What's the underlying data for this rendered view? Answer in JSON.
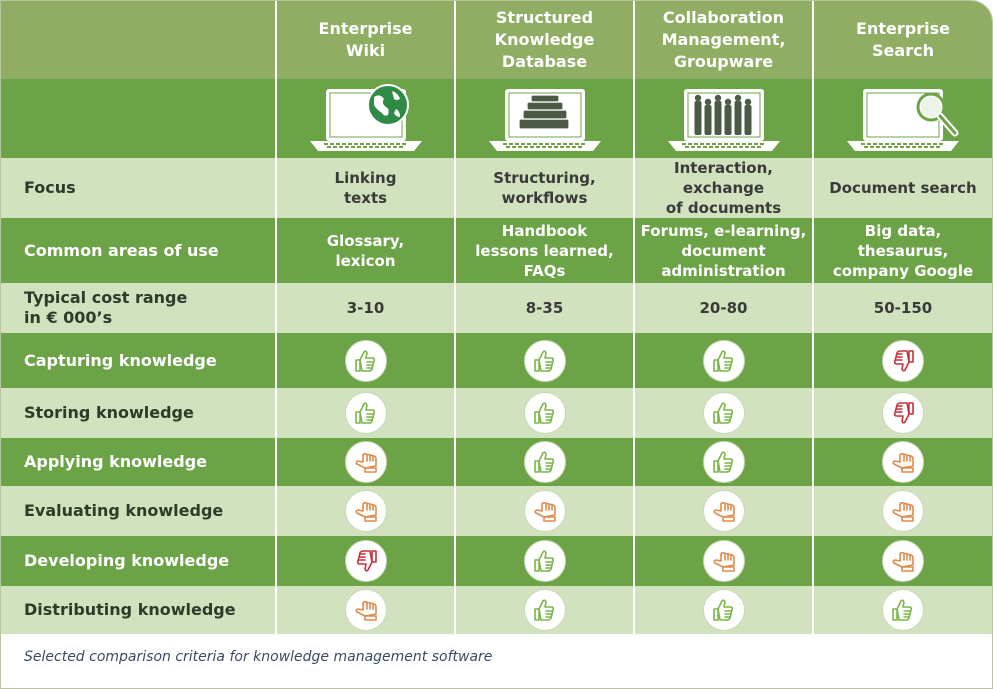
{
  "columns": [
    {
      "title": "Enterprise Wiki",
      "lines": [
        "Enterprise",
        "Wiki"
      ],
      "icon": "globe-laptop-icon"
    },
    {
      "title": "Structured Knowledge Database",
      "lines": [
        "Structured",
        "Knowledge",
        "Database"
      ],
      "icon": "books-laptop-icon"
    },
    {
      "title": "Collaboration Management, Groupware",
      "lines": [
        "Collaboration",
        "Management,",
        "Groupware"
      ],
      "icon": "people-laptop-icon"
    },
    {
      "title": "Enterprise Search",
      "lines": [
        "Enterprise",
        "Search"
      ],
      "icon": "magnifier-laptop-icon"
    }
  ],
  "rows": [
    {
      "label": "Focus",
      "cells": [
        "Linking\ntexts",
        "Structuring,\nworkflows",
        "Interaction, exchange\nof documents",
        "Document search"
      ]
    },
    {
      "label": "Common areas of use",
      "cells": [
        "Glossary,\nlexicon",
        "Handbook\nlessons learned,\nFAQs",
        "Forums, e-learning,\ndocument\nadministration",
        "Big data,\nthesaurus,\ncompany Google"
      ]
    },
    {
      "label": "Typical cost range\nin € 000’s",
      "cells": [
        "3-10",
        "8-35",
        "20-80",
        "50-150"
      ]
    }
  ],
  "ratings": [
    {
      "label": "Capturing knowledge",
      "values": [
        "thumbs-up",
        "thumbs-up",
        "thumbs-up",
        "thumbs-down"
      ]
    },
    {
      "label": "Storing knowledge",
      "values": [
        "thumbs-up",
        "thumbs-up",
        "thumbs-up",
        "thumbs-down"
      ]
    },
    {
      "label": "Applying knowledge",
      "values": [
        "thumbs-neutral",
        "thumbs-up",
        "thumbs-up",
        "thumbs-neutral"
      ]
    },
    {
      "label": "Evaluating knowledge",
      "values": [
        "thumbs-neutral",
        "thumbs-neutral",
        "thumbs-neutral",
        "thumbs-neutral"
      ]
    },
    {
      "label": "Developing knowledge",
      "values": [
        "thumbs-down",
        "thumbs-up",
        "thumbs-neutral",
        "thumbs-neutral"
      ]
    },
    {
      "label": "Distributing knowledge",
      "values": [
        "thumbs-neutral",
        "thumbs-up",
        "thumbs-up",
        "thumbs-up"
      ]
    }
  ],
  "rating_colors": {
    "thumbs-up": "#7ab648",
    "thumbs-neutral": "#e08a4a",
    "thumbs-down": "#c8323a"
  },
  "caption": "Selected comparison criteria for knowledge management software"
}
